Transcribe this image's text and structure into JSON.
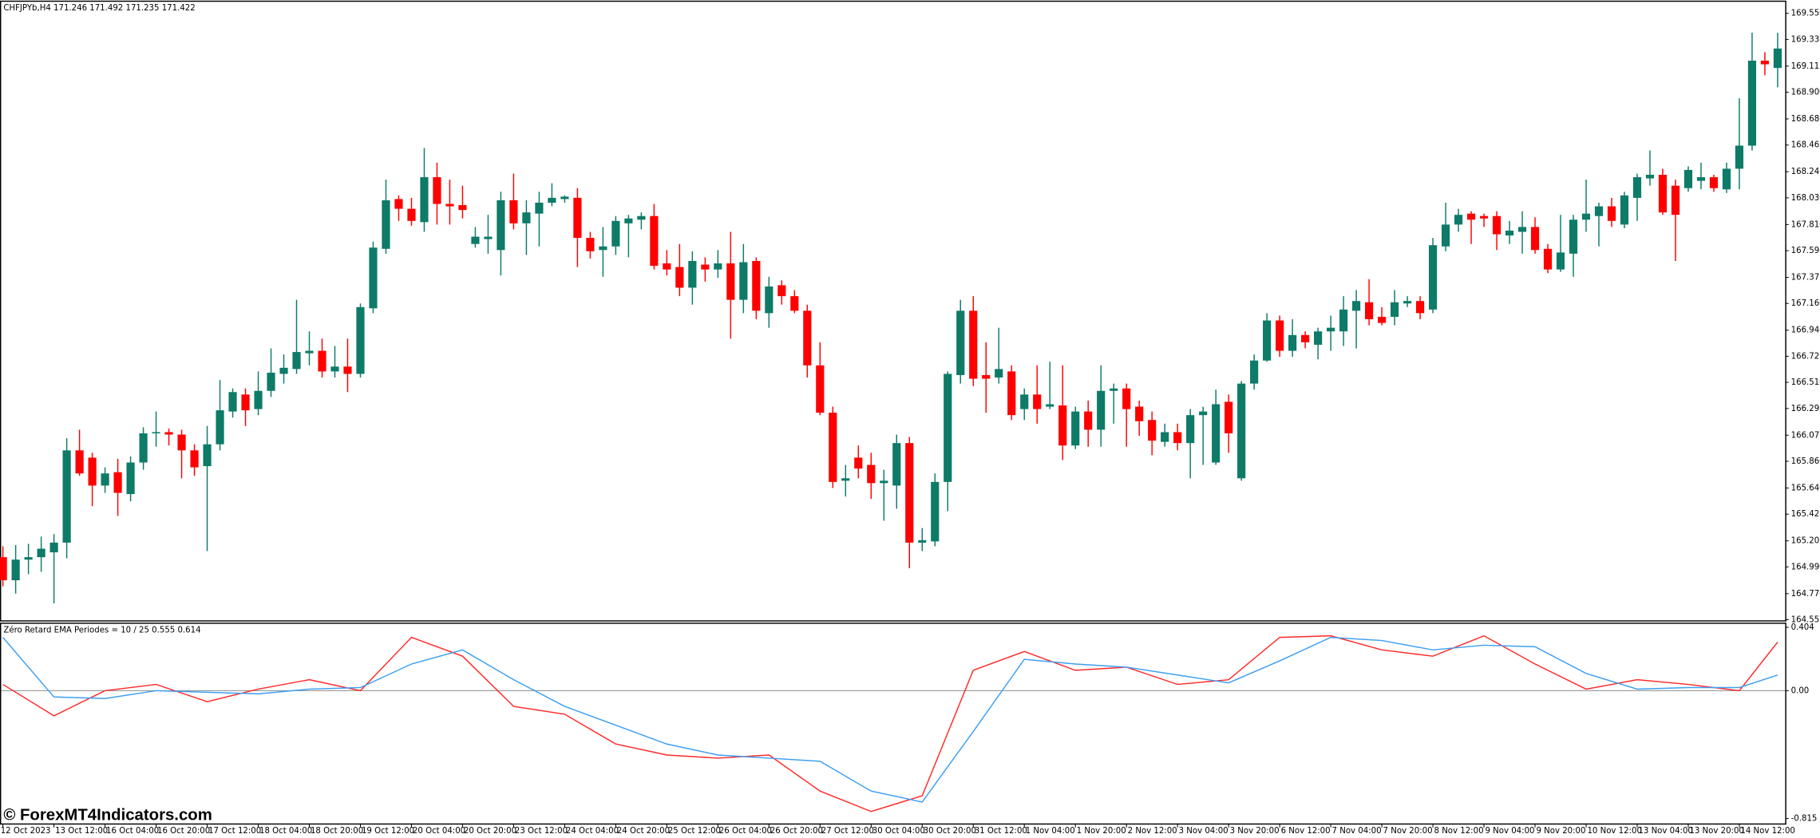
{
  "chart_data": [
    {
      "type": "candlestick",
      "title": "CHFJPYb,H4  171.246 171.492 171.235 171.422",
      "colors": {
        "up": "#0d7b68",
        "down": "#ff0000"
      },
      "categories": [
        "12 Oct 2023",
        null,
        null,
        null,
        "13 Oct 12:00",
        null,
        null,
        null,
        "16 Oct 04:00",
        null,
        null,
        null,
        "16 Oct 20:00",
        null,
        null,
        null,
        "17 Oct 12:00",
        null,
        null,
        null,
        "18 Oct 04:00",
        null,
        null,
        null,
        "18 Oct 20:00",
        null,
        null,
        null,
        "19 Oct 12:00",
        null,
        null,
        null,
        "20 Oct 04:00",
        null,
        null,
        null,
        "20 Oct 20:00",
        null,
        null,
        null,
        "23 Oct 12:00",
        null,
        null,
        null,
        "24 Oct 04:00",
        null,
        null,
        null,
        "24 Oct 20:00",
        null,
        null,
        null,
        "25 Oct 12:00",
        null,
        null,
        null,
        "26 Oct 04:00",
        null,
        null,
        null,
        "26 Oct 20:00",
        null,
        null,
        null,
        "27 Oct 12:00",
        null,
        null,
        null,
        "30 Oct 04:00",
        null,
        null,
        null,
        "30 Oct 20:00",
        null,
        null,
        null,
        "31 Oct 12:00",
        null,
        null,
        null,
        "1 Nov 04:00",
        null,
        null,
        null,
        "1 Nov 20:00",
        null,
        null,
        null,
        "2 Nov 12:00",
        null,
        null,
        null,
        "3 Nov 04:00",
        null,
        null,
        null,
        "3 Nov 20:00",
        null,
        null,
        null,
        "6 Nov 12:00",
        null,
        null,
        null,
        "7 Nov 04:00",
        null,
        null,
        null,
        "7 Nov 20:00",
        null,
        null,
        null,
        "8 Nov 12:00",
        null,
        null,
        null,
        "9 Nov 04:00",
        null,
        null,
        null,
        "9 Nov 20:00",
        null,
        null,
        null,
        "10 Nov 12:00",
        null,
        null,
        null,
        "13 Nov 04:00",
        null,
        null,
        null,
        "13 Nov 20:00",
        null,
        null,
        null,
        "14 Nov 12:00",
        null,
        null,
        null
      ],
      "candles": [
        [
          165.07,
          165.16,
          164.83,
          164.88
        ],
        [
          164.88,
          165.17,
          164.77,
          165.05
        ],
        [
          165.05,
          165.18,
          164.93,
          165.07
        ],
        [
          165.07,
          165.24,
          164.95,
          165.14
        ],
        [
          165.11,
          165.26,
          164.69,
          165.19
        ],
        [
          165.19,
          166.05,
          165.06,
          165.95
        ],
        [
          165.95,
          166.12,
          165.74,
          165.76
        ],
        [
          165.89,
          165.93,
          165.49,
          165.66
        ],
        [
          165.66,
          165.81,
          165.6,
          165.76
        ],
        [
          165.77,
          165.88,
          165.41,
          165.6
        ],
        [
          165.59,
          165.9,
          165.53,
          165.85
        ],
        [
          165.85,
          166.14,
          165.79,
          166.09
        ],
        [
          166.09,
          166.27,
          165.98,
          166.1
        ],
        [
          166.1,
          166.13,
          165.99,
          166.08
        ],
        [
          166.08,
          166.12,
          165.72,
          165.95
        ],
        [
          165.95,
          166,
          165.74,
          165.81
        ],
        [
          165.82,
          166.15,
          165.12,
          166
        ],
        [
          166,
          166.53,
          165.95,
          166.28
        ],
        [
          166.27,
          166.46,
          166.22,
          166.43
        ],
        [
          166.41,
          166.46,
          166.15,
          166.28
        ],
        [
          166.29,
          166.6,
          166.24,
          166.44
        ],
        [
          166.44,
          166.79,
          166.39,
          166.59
        ],
        [
          166.58,
          166.74,
          166.5,
          166.63
        ],
        [
          166.62,
          167.19,
          166.58,
          166.76
        ],
        [
          166.75,
          166.93,
          166.65,
          166.77
        ],
        [
          166.77,
          166.87,
          166.55,
          166.6
        ],
        [
          166.6,
          166.81,
          166.55,
          166.64
        ],
        [
          166.64,
          166.87,
          166.43,
          166.58
        ],
        [
          166.58,
          167.16,
          166.55,
          167.13
        ],
        [
          167.12,
          167.67,
          167.08,
          167.62
        ],
        [
          167.61,
          168.18,
          167.57,
          168.01
        ],
        [
          168.02,
          168.05,
          167.84,
          167.94
        ],
        [
          167.94,
          168.03,
          167.8,
          167.84
        ],
        [
          167.83,
          168.44,
          167.75,
          168.2
        ],
        [
          168.2,
          168.32,
          167.81,
          167.98
        ],
        [
          167.98,
          168.18,
          167.81,
          167.96
        ],
        [
          167.97,
          168.13,
          167.86,
          167.93
        ],
        [
          167.65,
          167.79,
          167.62,
          167.71
        ],
        [
          167.69,
          167.89,
          167.57,
          167.71
        ],
        [
          167.6,
          168.08,
          167.39,
          168.01
        ],
        [
          168.01,
          168.23,
          167.77,
          167.82
        ],
        [
          167.82,
          168.01,
          167.56,
          167.91
        ],
        [
          167.9,
          168.08,
          167.63,
          167.99
        ],
        [
          167.99,
          168.15,
          167.96,
          168.03
        ],
        [
          168.02,
          168.05,
          167.99,
          168.04
        ],
        [
          168.03,
          168.11,
          167.46,
          167.7
        ],
        [
          167.7,
          167.75,
          167.53,
          167.59
        ],
        [
          167.6,
          167.79,
          167.38,
          167.63
        ],
        [
          167.63,
          167.88,
          167.56,
          167.84
        ],
        [
          167.82,
          167.89,
          167.54,
          167.86
        ],
        [
          167.85,
          167.91,
          167.77,
          167.88
        ],
        [
          167.88,
          167.98,
          167.44,
          167.47
        ],
        [
          167.49,
          167.6,
          167.39,
          167.44
        ],
        [
          167.46,
          167.65,
          167.22,
          167.29
        ],
        [
          167.29,
          167.59,
          167.15,
          167.51
        ],
        [
          167.48,
          167.54,
          167.34,
          167.44
        ],
        [
          167.44,
          167.6,
          167.37,
          167.49
        ],
        [
          167.49,
          167.75,
          166.87,
          167.19
        ],
        [
          167.19,
          167.65,
          167.08,
          167.5
        ],
        [
          167.51,
          167.54,
          167.03,
          167.1
        ],
        [
          167.08,
          167.38,
          166.96,
          167.3
        ],
        [
          167.31,
          167.35,
          167.15,
          167.22
        ],
        [
          167.22,
          167.27,
          167.08,
          167.1
        ],
        [
          167.1,
          167.15,
          166.55,
          166.65
        ],
        [
          166.65,
          166.84,
          166.24,
          166.26
        ],
        [
          166.26,
          166.31,
          165.64,
          165.69
        ],
        [
          165.7,
          165.83,
          165.57,
          165.72
        ],
        [
          165.89,
          165.99,
          165.72,
          165.8
        ],
        [
          165.83,
          165.93,
          165.55,
          165.68
        ],
        [
          165.68,
          165.79,
          165.37,
          165.7
        ],
        [
          165.66,
          166.08,
          165.47,
          166.01
        ],
        [
          166.01,
          166.06,
          164.98,
          165.19
        ],
        [
          165.19,
          165.31,
          165.12,
          165.21
        ],
        [
          165.2,
          165.76,
          165.16,
          165.69
        ],
        [
          165.69,
          166.6,
          165.45,
          166.58
        ],
        [
          166.57,
          167.19,
          166.5,
          167.1
        ],
        [
          167.1,
          167.22,
          166.48,
          166.54
        ],
        [
          166.57,
          166.84,
          166.26,
          166.54
        ],
        [
          166.55,
          166.96,
          166.5,
          166.62
        ],
        [
          166.6,
          166.65,
          166.2,
          166.24
        ],
        [
          166.29,
          166.46,
          166.2,
          166.41
        ],
        [
          166.41,
          166.65,
          166.17,
          166.29
        ],
        [
          166.31,
          166.68,
          166.29,
          166.33
        ],
        [
          166.32,
          166.65,
          165.87,
          165.99
        ],
        [
          165.99,
          166.31,
          165.96,
          166.27
        ],
        [
          166.27,
          166.36,
          165.98,
          166.12
        ],
        [
          166.12,
          166.65,
          165.98,
          166.44
        ],
        [
          166.44,
          166.5,
          166.17,
          166.46
        ],
        [
          166.46,
          166.5,
          165.98,
          166.29
        ],
        [
          166.31,
          166.36,
          166.07,
          166.19
        ],
        [
          166.2,
          166.27,
          165.91,
          166.03
        ],
        [
          166.02,
          166.17,
          165.98,
          166.1
        ],
        [
          166.1,
          166.17,
          165.95,
          166.01
        ],
        [
          166.01,
          166.29,
          165.72,
          166.24
        ],
        [
          166.24,
          166.31,
          165.83,
          166.27
        ],
        [
          165.85,
          166.45,
          165.83,
          166.33
        ],
        [
          166.35,
          166.41,
          165.93,
          166.09
        ],
        [
          165.72,
          166.52,
          165.7,
          166.5
        ],
        [
          166.5,
          166.74,
          166.45,
          166.69
        ],
        [
          166.69,
          167.08,
          166.68,
          167.02
        ],
        [
          167.02,
          167.06,
          166.72,
          166.77
        ],
        [
          166.77,
          167.03,
          166.72,
          166.9
        ],
        [
          166.9,
          166.93,
          166.79,
          166.84
        ],
        [
          166.82,
          166.96,
          166.7,
          166.93
        ],
        [
          166.93,
          167.06,
          166.77,
          166.96
        ],
        [
          166.93,
          167.22,
          166.81,
          167.11
        ],
        [
          167.1,
          167.27,
          166.79,
          167.18
        ],
        [
          167.17,
          167.36,
          166.98,
          167.03
        ],
        [
          167.05,
          167.13,
          166.98,
          167
        ],
        [
          167.05,
          167.27,
          166.98,
          167.17
        ],
        [
          167.16,
          167.22,
          167.13,
          167.18
        ],
        [
          167.18,
          167.22,
          167.03,
          167.08
        ],
        [
          167.11,
          167.7,
          167.08,
          167.64
        ],
        [
          167.63,
          167.99,
          167.59,
          167.81
        ],
        [
          167.81,
          167.94,
          167.75,
          167.89
        ],
        [
          167.9,
          167.92,
          167.65,
          167.85
        ],
        [
          167.88,
          167.9,
          167.79,
          167.86
        ],
        [
          167.88,
          167.92,
          167.6,
          167.73
        ],
        [
          167.72,
          167.84,
          167.65,
          167.76
        ],
        [
          167.75,
          167.92,
          167.57,
          167.79
        ],
        [
          167.79,
          167.87,
          167.57,
          167.6
        ],
        [
          167.61,
          167.65,
          167.41,
          167.44
        ],
        [
          167.44,
          167.89,
          167.42,
          167.58
        ],
        [
          167.57,
          167.89,
          167.38,
          167.85
        ],
        [
          167.85,
          168.18,
          167.75,
          167.9
        ],
        [
          167.88,
          167.99,
          167.63,
          167.96
        ],
        [
          167.96,
          168.03,
          167.79,
          167.84
        ],
        [
          167.81,
          168.08,
          167.78,
          168.05
        ],
        [
          168.03,
          168.23,
          167.84,
          168.2
        ],
        [
          168.19,
          168.42,
          168.13,
          168.22
        ],
        [
          168.22,
          168.27,
          167.89,
          167.91
        ],
        [
          168.13,
          168.18,
          167.51,
          167.89
        ],
        [
          168.11,
          168.29,
          168.08,
          168.26
        ],
        [
          168.17,
          168.32,
          168.1,
          168.2
        ],
        [
          168.2,
          168.22,
          168.08,
          168.11
        ],
        [
          168.1,
          168.32,
          168.07,
          168.27
        ],
        [
          168.27,
          168.85,
          168.1,
          168.46
        ],
        [
          168.46,
          169.39,
          168.42,
          169.16
        ],
        [
          169.16,
          169.23,
          169.04,
          169.13
        ],
        [
          169.1,
          169.39,
          168.94,
          169.26
        ]
      ],
      "ylim": [
        164.545,
        169.64
      ],
      "yticks": [
        {
          "value": 169.55,
          "label": "169.550"
        },
        169.335,
        169.115,
        {
          "value": 168.9,
          "label": "168.900"
        },
        {
          "value": 168.68,
          "label": "168.680"
        },
        168.465,
        168.245,
        {
          "value": 168.03,
          "label": "168.030"
        },
        {
          "value": 167.81,
          "label": "167.810"
        },
        167.595,
        167.375,
        {
          "value": 167.16,
          "label": "167.160"
        },
        {
          "value": 166.94,
          "label": "166.940"
        },
        166.725,
        {
          "value": 166.51,
          "label": "166.510"
        },
        166.295,
        166.075,
        {
          "value": 165.86,
          "label": "165.860"
        },
        {
          "value": 165.64,
          "label": "165.640"
        },
        165.425,
        165.205,
        {
          "value": 164.99,
          "label": "164.990"
        },
        {
          "value": 164.77,
          "label": "164.770"
        },
        164.555
      ]
    },
    {
      "type": "line",
      "title": "Zéro Retard EMA Periodes = 10 / 25  0.555 0.614",
      "x": [
        0,
        4,
        8,
        12,
        16,
        20,
        24,
        28,
        32,
        36,
        40,
        44,
        48,
        52,
        56,
        60,
        64,
        68,
        72,
        76,
        80,
        84,
        88,
        92,
        96,
        100,
        104,
        108,
        112,
        116,
        120,
        124,
        128,
        132,
        136,
        139
      ],
      "series": [
        {
          "color": "#ff2a2a",
          "values": [
            0.04,
            -0.16,
            0,
            0.04,
            -0.07,
            0.01,
            0.07,
            0,
            0.34,
            0.22,
            -0.1,
            -0.15,
            -0.34,
            -0.41,
            -0.43,
            -0.41,
            -0.64,
            -0.77,
            -0.67,
            0.13,
            0.25,
            0.13,
            0.15,
            0.04,
            0.07,
            0.34,
            0.35,
            0.26,
            0.22,
            0.35,
            0.17,
            0.01,
            0.07,
            0.04,
            0,
            0.31
          ]
        },
        {
          "color": "#3d9ff2",
          "values": [
            0.34,
            -0.04,
            -0.05,
            0,
            -0.01,
            -0.02,
            0.01,
            0.02,
            0.17,
            0.26,
            0.07,
            -0.1,
            -0.22,
            -0.34,
            -0.41,
            -0.43,
            -0.45,
            -0.64,
            -0.71,
            -0.26,
            0.2,
            0.17,
            0.15,
            0.1,
            0.05,
            0.19,
            0.34,
            0.32,
            0.26,
            0.29,
            0.28,
            0.11,
            0.01,
            0.02,
            0.02,
            0.1
          ]
        }
      ],
      "level": 0,
      "ylim": [
        -0.85,
        0.43
      ],
      "yticks": [
        0.404,
        {
          "value": 0,
          "label": "0.00"
        },
        -0.815
      ]
    }
  ],
  "watermark": "© ForexMT4Indicators.com"
}
